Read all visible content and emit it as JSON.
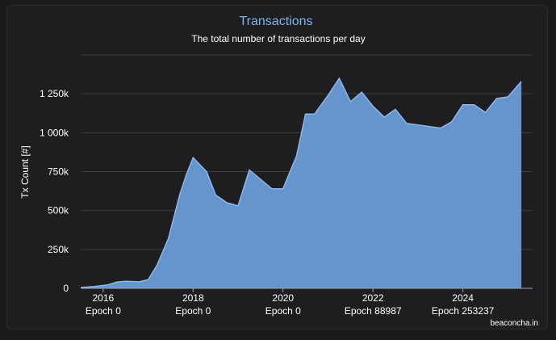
{
  "chart_data": {
    "type": "area",
    "title": "Transactions",
    "subtitle": "The total number of transactions per day",
    "ylabel": "Tx Count [#]",
    "xlabel": "",
    "ylim": [
      0,
      1500000
    ],
    "xlim": [
      2015.5,
      2025.55
    ],
    "grid": true,
    "y_ticks": [
      {
        "value": 0,
        "label": "0"
      },
      {
        "value": 250000,
        "label": "250k"
      },
      {
        "value": 500000,
        "label": "500k"
      },
      {
        "value": 750000,
        "label": "750k"
      },
      {
        "value": 1000000,
        "label": "1 000k"
      },
      {
        "value": 1250000,
        "label": "1 250k"
      }
    ],
    "x_ticks": [
      {
        "value": 2016,
        "label": "2016",
        "sublabel": "Epoch 0"
      },
      {
        "value": 2018,
        "label": "2018",
        "sublabel": "Epoch 0"
      },
      {
        "value": 2020,
        "label": "2020",
        "sublabel": "Epoch 0"
      },
      {
        "value": 2022,
        "label": "2022",
        "sublabel": "Epoch 88987"
      },
      {
        "value": 2024,
        "label": "2024",
        "sublabel": "Epoch 253237"
      }
    ],
    "series": [
      {
        "x": [
          2015.5,
          2015.8,
          2016.1,
          2016.3,
          2016.5,
          2016.8,
          2017.0,
          2017.2,
          2017.45,
          2017.7,
          2017.85,
          2018.0,
          2018.3,
          2018.5,
          2018.75,
          2019.0,
          2019.25,
          2019.5,
          2019.75,
          2020.0,
          2020.3,
          2020.5,
          2020.7,
          2021.0,
          2021.25,
          2021.5,
          2021.75,
          2022.0,
          2022.25,
          2022.5,
          2022.75,
          2023.0,
          2023.25,
          2023.5,
          2023.75,
          2024.0,
          2024.25,
          2024.5,
          2024.75,
          2025.0,
          2025.3
        ],
        "values": [
          5000,
          12000,
          22000,
          40000,
          45000,
          42000,
          55000,
          150000,
          320000,
          600000,
          730000,
          840000,
          750000,
          600000,
          550000,
          530000,
          760000,
          700000,
          640000,
          640000,
          850000,
          1120000,
          1120000,
          1240000,
          1350000,
          1200000,
          1260000,
          1170000,
          1100000,
          1150000,
          1060000,
          1050000,
          1040000,
          1030000,
          1070000,
          1180000,
          1180000,
          1130000,
          1220000,
          1230000,
          1330000
        ]
      }
    ],
    "colors": {
      "area_fill": "#6a9bd6",
      "area_line": "#8ab8ee",
      "title": "#7ab6ee",
      "text": "#ffffff",
      "grid": "#3a3a3f"
    }
  },
  "credit": "beaconcha.in"
}
